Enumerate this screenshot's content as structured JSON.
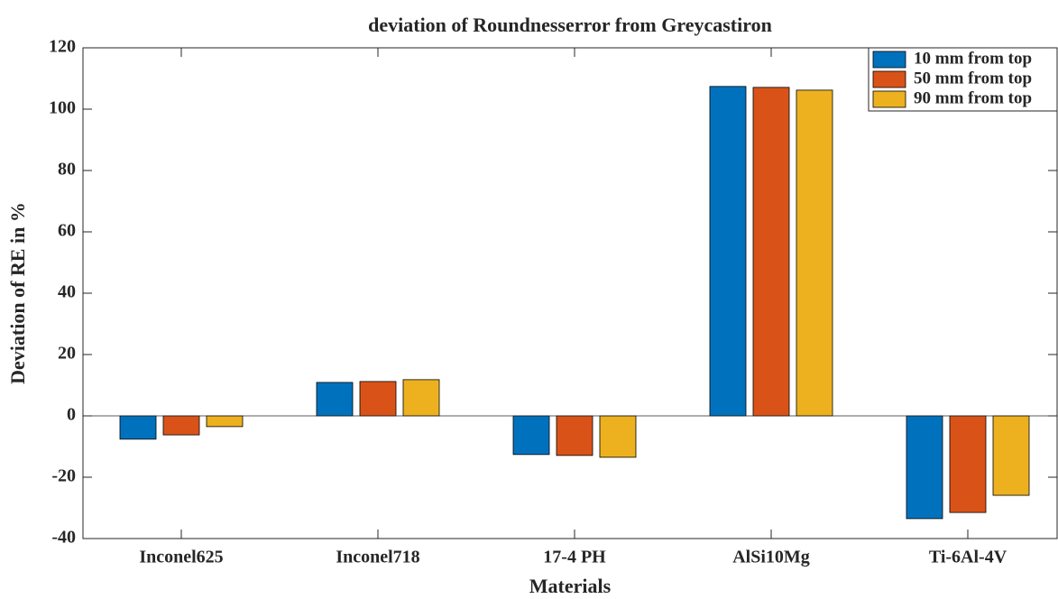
{
  "chart_data": {
    "type": "bar",
    "title": "deviation of Roundnesserror from Greycastiron",
    "x_label": "Materials",
    "y_label": "Deviation of RE in %",
    "categories": [
      "Inconel625",
      "Inconel718",
      "17-4 PH",
      "AlSi10Mg",
      "Ti-6Al-4V"
    ],
    "series": [
      {
        "name": "10 mm from top",
        "color": "#0072BD",
        "values": [
          -7.6,
          10.9,
          -12.6,
          107.4,
          -33.5
        ]
      },
      {
        "name": "50 mm from top",
        "color": "#D95319",
        "values": [
          -6.2,
          11.2,
          -12.9,
          107.1,
          -31.5
        ]
      },
      {
        "name": "90 mm from top",
        "color": "#EDB120",
        "values": [
          -3.5,
          11.8,
          -13.5,
          106.2,
          -25.9
        ]
      }
    ],
    "ylim": [
      -40,
      120
    ],
    "yticks": [
      -40,
      -20,
      0,
      20,
      40,
      60,
      80,
      100,
      120
    ],
    "legend": "top-right",
    "grid": false
  }
}
